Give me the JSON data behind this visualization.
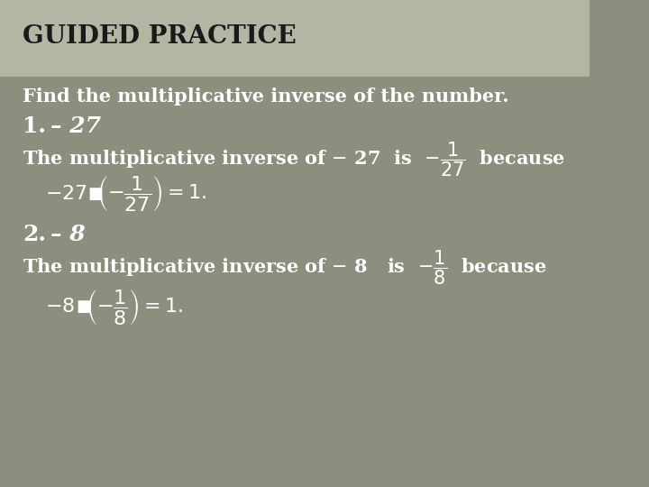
{
  "title": "GUIDED PRACTICE",
  "subtitle": "Find the multiplicative inverse of the number.",
  "bg_color": "#8a8f7e",
  "text_color_white": "#ffffff",
  "text_color_dark": "#1a1a1a",
  "title_fontsize": 20,
  "body_fontsize": 15,
  "label_fontsize": 17
}
